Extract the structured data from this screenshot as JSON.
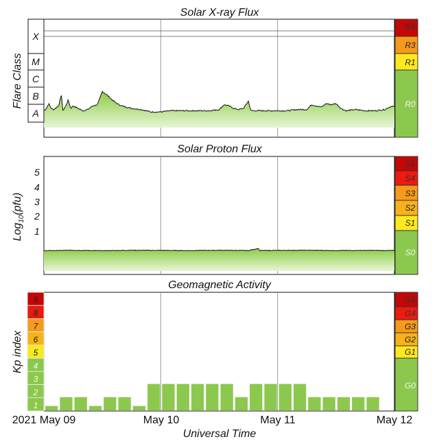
{
  "colors": {
    "flux_green": "#8ccc45",
    "flux_green_light": "#e6f5d6",
    "quiet_green": "#8dc84e",
    "yellow": "#ffe81f",
    "orange": "#f59a1a",
    "red": "#ee1a0f",
    "dark_red": "#c40707",
    "kp_green": "#8dc84e",
    "kp_yellow": "#f5ea1e",
    "kp_orange": "#f59a1a",
    "kp_red": "#e21c10",
    "kp_darkred": "#c40707",
    "grid": "#9a9a9a"
  },
  "xray": {
    "title": "Solar X-ray Flux",
    "ylabel": "Flare Class",
    "classes": [
      "X",
      "M",
      "C",
      "B",
      "A"
    ],
    "scale": [
      {
        "label": "R5",
        "color": "#c40707"
      },
      {
        "label": "R3",
        "color": "#f59a1a"
      },
      {
        "label": "R1",
        "color": "#ffe81f"
      },
      {
        "label": "R0",
        "color": "#8dc84e"
      }
    ]
  },
  "proton": {
    "title": "Solar Proton Flux",
    "ylabel_main": "Log",
    "ylabel_sub": "10",
    "ylabel_unit": "(pfu)",
    "ticks": [
      "5",
      "4",
      "3",
      "2",
      "1"
    ],
    "scale": [
      {
        "label": "S5",
        "color": "#c40707"
      },
      {
        "label": "S4",
        "color": "#ee1a0f"
      },
      {
        "label": "S3",
        "color": "#f59a1a"
      },
      {
        "label": "S2",
        "color": "#f7b21b"
      },
      {
        "label": "S1",
        "color": "#ffe81f"
      },
      {
        "label": "S0",
        "color": "#8dc84e"
      }
    ]
  },
  "geomag": {
    "title": "Geomagnetic Activity",
    "ylabel": "Kp index",
    "kp_levels": [
      "9",
      "8",
      "7",
      "6",
      "5",
      "4",
      "3",
      "2",
      "1"
    ],
    "scale": [
      {
        "label": "G5",
        "color": "#c40707"
      },
      {
        "label": "G4",
        "color": "#ee1a0f"
      },
      {
        "label": "G3",
        "color": "#f59a1a"
      },
      {
        "label": "G2",
        "color": "#f7b21b"
      },
      {
        "label": "G1",
        "color": "#ffe81f"
      },
      {
        "label": "G0",
        "color": "#8dc84e"
      }
    ]
  },
  "xaxis": {
    "ticks": [
      "2021 May 09",
      "May 10",
      "May 11",
      "May 12"
    ],
    "label": "Universal Time"
  },
  "chart_data": [
    {
      "type": "area",
      "title": "Solar X-ray Flux",
      "ylabel": "Flare Class",
      "y_scale": "log",
      "x_range_hours": [
        0,
        72
      ],
      "y_range": [
        -8.3,
        -3.4
      ],
      "points": [
        [
          0,
          -7.2
        ],
        [
          0.5,
          -7.1
        ],
        [
          1,
          -6.9
        ],
        [
          1.5,
          -7.1
        ],
        [
          2,
          -7.15
        ],
        [
          3,
          -7.0
        ],
        [
          3.6,
          -6.55
        ],
        [
          3.9,
          -7.2
        ],
        [
          4.5,
          -7.0
        ],
        [
          5,
          -6.75
        ],
        [
          5.5,
          -7.1
        ],
        [
          6,
          -7.0
        ],
        [
          7,
          -7.1
        ],
        [
          8,
          -7.2
        ],
        [
          9,
          -7.15
        ],
        [
          10,
          -7.0
        ],
        [
          11,
          -6.95
        ],
        [
          12,
          -6.4
        ],
        [
          13,
          -6.55
        ],
        [
          14,
          -6.75
        ],
        [
          15,
          -6.9
        ],
        [
          16,
          -7.0
        ],
        [
          18,
          -7.1
        ],
        [
          20,
          -7.15
        ],
        [
          22,
          -7.25
        ],
        [
          24,
          -7.25
        ],
        [
          26,
          -7.2
        ],
        [
          28,
          -7.2
        ],
        [
          30,
          -7.2
        ],
        [
          34,
          -7.2
        ],
        [
          36,
          -7.15
        ],
        [
          37,
          -6.95
        ],
        [
          38,
          -7.0
        ],
        [
          39,
          -7.1
        ],
        [
          40,
          -7.15
        ],
        [
          41,
          -7.1
        ],
        [
          42,
          -6.8
        ],
        [
          42.5,
          -7.2
        ],
        [
          44,
          -7.2
        ],
        [
          48,
          -7.2
        ],
        [
          50,
          -7.2
        ],
        [
          52,
          -7.15
        ],
        [
          54,
          -7.15
        ],
        [
          55,
          -6.95
        ],
        [
          56,
          -7.0
        ],
        [
          57,
          -7.05
        ],
        [
          58,
          -6.9
        ],
        [
          59,
          -6.95
        ],
        [
          60,
          -6.9
        ],
        [
          61,
          -7.1
        ],
        [
          62,
          -7.2
        ],
        [
          64,
          -7.15
        ],
        [
          66,
          -7.2
        ],
        [
          68,
          -7.2
        ],
        [
          70,
          -7.15
        ],
        [
          71.5,
          -7.0
        ],
        [
          72,
          -7.05
        ]
      ]
    },
    {
      "type": "area",
      "title": "Solar Proton Flux",
      "ylabel": "Log10(pfu)",
      "y_range": [
        -1.7,
        6
      ],
      "x_range_hours": [
        0,
        72
      ],
      "points": [
        [
          0,
          -0.15
        ],
        [
          6,
          -0.12
        ],
        [
          12,
          -0.15
        ],
        [
          18,
          -0.12
        ],
        [
          24,
          -0.13
        ],
        [
          30,
          -0.14
        ],
        [
          36,
          -0.12
        ],
        [
          42,
          -0.14
        ],
        [
          44,
          0.0
        ],
        [
          44.3,
          -0.14
        ],
        [
          48,
          -0.13
        ],
        [
          54,
          -0.12
        ],
        [
          60,
          -0.14
        ],
        [
          66,
          -0.13
        ],
        [
          72,
          -0.14
        ]
      ]
    },
    {
      "type": "bar",
      "title": "Geomagnetic Activity",
      "ylabel": "Kp index",
      "ylim": [
        0,
        9
      ],
      "bar_width_hours": 3,
      "x": [
        0,
        3,
        6,
        9,
        12,
        15,
        18,
        21,
        24,
        27,
        30,
        33,
        36,
        39,
        42,
        45,
        48,
        51,
        54,
        57,
        60,
        63,
        66,
        69
      ],
      "values": [
        0.33,
        1.0,
        1.0,
        0.33,
        1.0,
        1.0,
        0.33,
        2.0,
        2.0,
        2.0,
        2.0,
        2.0,
        2.0,
        1.0,
        2.0,
        2.0,
        2.0,
        2.0,
        1.0,
        1.0,
        1.0,
        1.0,
        1.0,
        0
      ]
    }
  ]
}
